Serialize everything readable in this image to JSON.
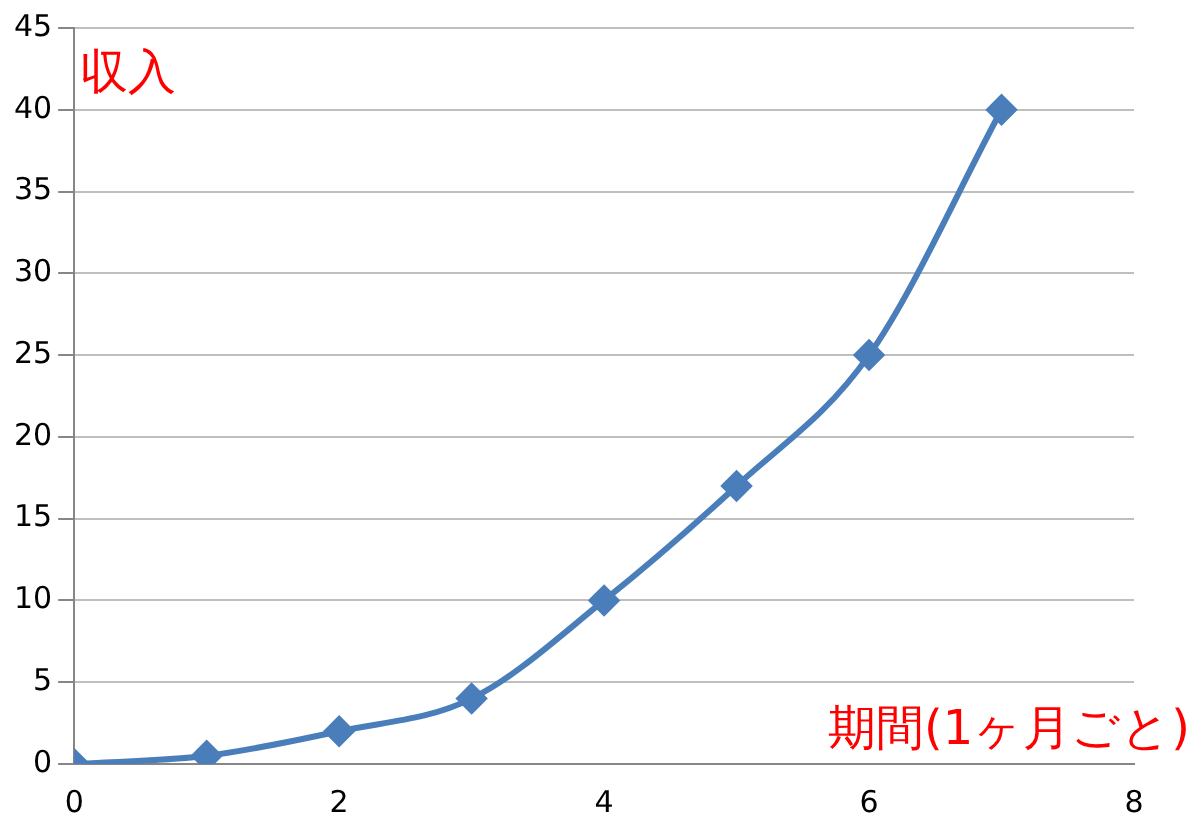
{
  "chart_data": {
    "type": "line",
    "xlabel": "期間(1ヶ月ごと)",
    "ylabel": "収入",
    "x": [
      0,
      1,
      2,
      3,
      4,
      5,
      6,
      7
    ],
    "series": [
      {
        "color": "#4a7ebb",
        "values": [
          0,
          0.5,
          2,
          4,
          10,
          17,
          25,
          40
        ]
      }
    ],
    "xlim": [
      0,
      8
    ],
    "xticks": [
      0,
      2,
      4,
      6,
      8
    ],
    "ylim": [
      0,
      45
    ],
    "yticks": [
      0,
      5,
      10,
      15,
      20,
      25,
      30,
      35,
      40,
      45
    ],
    "grid": "y",
    "legend": false,
    "marker": "diamond",
    "line_style": "solid"
  }
}
